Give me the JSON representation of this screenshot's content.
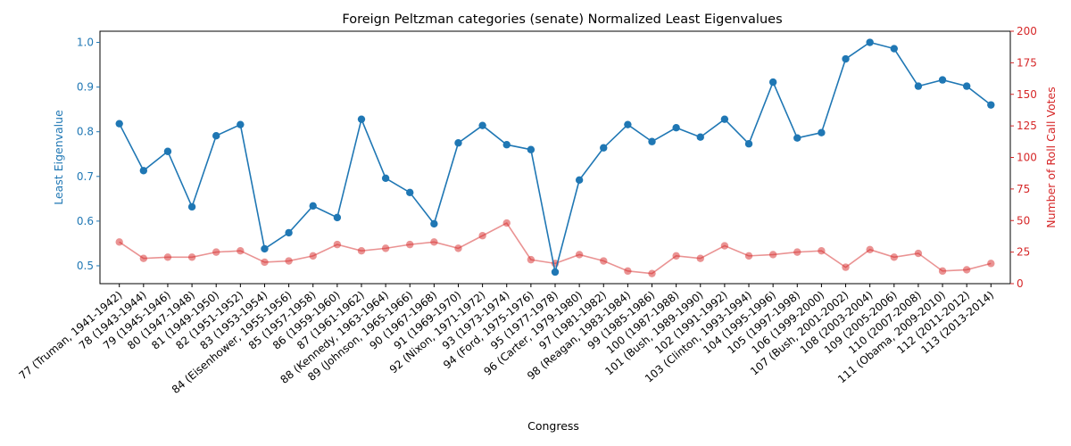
{
  "chart_data": {
    "type": "line",
    "title": "Foreign Peltzman categories (senate) Normalized Least Eigenvalues",
    "xlabel": "Congress",
    "ylabel_left": "Least Eigenvalue",
    "ylabel_right": "Number of Roll Call Votes",
    "ylim_left": [
      0.46,
      1.025
    ],
    "yticks_left": [
      "0.5",
      "0.6",
      "0.7",
      "0.8",
      "0.9",
      "1.0"
    ],
    "ylim_right": [
      0,
      200
    ],
    "yticks_right": [
      "0",
      "25",
      "50",
      "75",
      "100",
      "125",
      "150",
      "175",
      "200"
    ],
    "grid": false,
    "categories": [
      "77 (Truman, 1941-1942)",
      "78 (1943-1944)",
      "79 (1945-1946)",
      "80 (1947-1948)",
      "81 (1949-1950)",
      "82 (1951-1952)",
      "83 (1953-1954)",
      "84 (Eisenhower, 1955-1956)",
      "85 (1957-1958)",
      "86 (1959-1960)",
      "87 (1961-1962)",
      "88 (Kennedy, 1963-1964)",
      "89 (Johnson, 1965-1966)",
      "90 (1967-1968)",
      "91 (1969-1970)",
      "92 (Nixon, 1971-1972)",
      "93 (1973-1974)",
      "94 (Ford, 1975-1976)",
      "95 (1977-1978)",
      "96 (Carter, 1979-1980)",
      "97 (1981-1982)",
      "98 (Reagan, 1983-1984)",
      "99 (1985-1986)",
      "100 (1987-1988)",
      "101 (Bush, 1989-1990)",
      "102 (1991-1992)",
      "103 (Clinton, 1993-1994)",
      "104 (1995-1996)",
      "105 (1997-1998)",
      "106 (1999-2000)",
      "107 (Bush, 2001-2002)",
      "108 (2003-2004)",
      "109 (2005-2006)",
      "110 (2007-2008)",
      "111 (Obama, 2009-2010)",
      "112 (2011-2012)",
      "113 (2013-2014)"
    ],
    "series": [
      {
        "axis": "left",
        "color": "#1f77b4",
        "values": [
          0.818,
          0.713,
          0.756,
          0.632,
          0.791,
          0.816,
          0.538,
          0.574,
          0.634,
          0.608,
          0.828,
          0.696,
          0.664,
          0.594,
          0.775,
          0.814,
          0.771,
          0.76,
          0.486,
          0.692,
          0.764,
          0.816,
          0.778,
          0.809,
          0.788,
          0.828,
          0.773,
          0.911,
          0.786,
          0.798,
          0.963,
          1.0,
          0.986,
          0.902,
          0.916,
          0.902,
          0.86
        ]
      },
      {
        "axis": "right",
        "color": "#d62728",
        "values": [
          33,
          20,
          21,
          21,
          25,
          26,
          17,
          18,
          22,
          31,
          26,
          28,
          31,
          33,
          28,
          38,
          48,
          19,
          16,
          23,
          18,
          10,
          8,
          22,
          20,
          30,
          22,
          23,
          25,
          26,
          13,
          27,
          21,
          24,
          10,
          11,
          16
        ]
      }
    ]
  }
}
